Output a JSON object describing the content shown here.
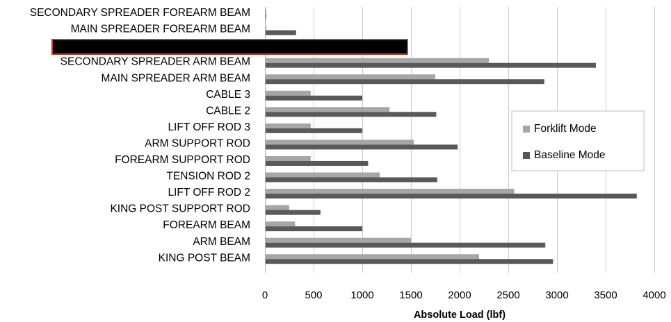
{
  "chart_data": {
    "type": "bar",
    "orientation": "horizontal",
    "categories": [
      "SECONDARY SPREADER FOREARM BEAM",
      "MAIN SPREADER FOREARM BEAM",
      "",
      "SECONDARY SPREADER ARM BEAM",
      "MAIN SPREADER ARM BEAM",
      "CABLE 3",
      "CABLE 2",
      "LIFT OFF ROD 3",
      "ARM SUPPORT ROD",
      "FOREARM SUPPORT ROD",
      "TENSION ROD 2",
      "LIFT OFF ROD 2",
      "KING POST SUPPORT ROD",
      "FOREARM BEAM",
      "ARM BEAM",
      "KING POST BEAM"
    ],
    "series": [
      {
        "name": "Forklift Mode",
        "color": "#a6a6a6",
        "values": [
          5,
          5,
          0,
          2300,
          1750,
          470,
          1280,
          470,
          1530,
          470,
          1180,
          2560,
          250,
          310,
          1500,
          2200
        ]
      },
      {
        "name": "Baseline Mode",
        "color": "#595959",
        "values": [
          5,
          320,
          0,
          3400,
          2870,
          1000,
          1760,
          1000,
          1980,
          1060,
          1770,
          3820,
          570,
          1000,
          2880,
          2960
        ]
      }
    ],
    "xlabel": "Absolute Load (lbf)",
    "ylabel": "",
    "xlim": [
      0,
      4000
    ],
    "xticks": [
      0,
      500,
      1000,
      1500,
      2000,
      2500,
      3000,
      3500,
      4000
    ],
    "xtick_labels": [
      "0",
      "500",
      "1000",
      "1500",
      "2000",
      "2500",
      "3000",
      "3500",
      "4000"
    ],
    "grid": "vertical",
    "legend_position": "right",
    "redaction_box_color": "#000000",
    "redaction_border_color": "#c0392b"
  }
}
